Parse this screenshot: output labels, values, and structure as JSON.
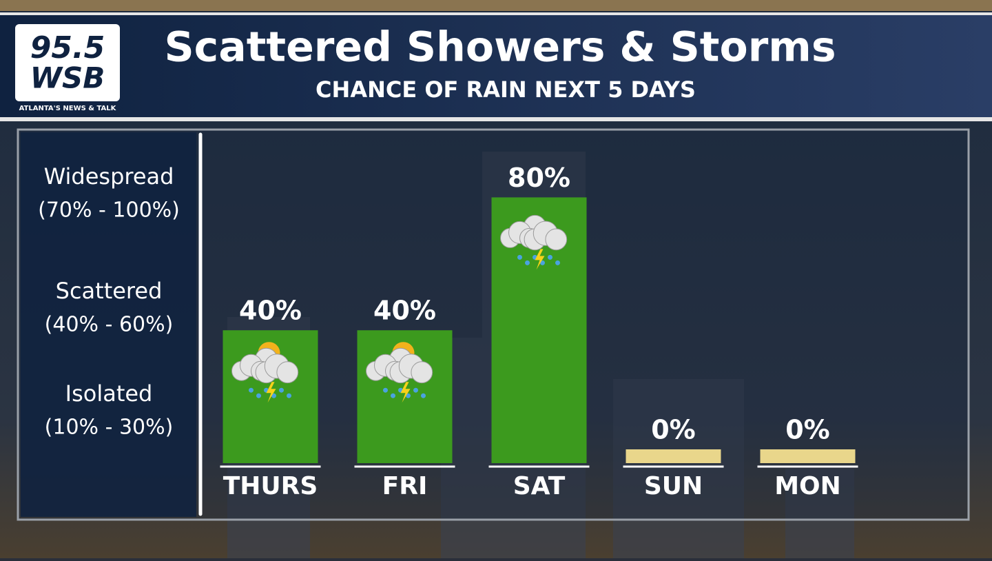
{
  "logo": {
    "number": "95.5",
    "name": "WSB",
    "tagline": "ATLANTA'S NEWS & TALK"
  },
  "chart_data": {
    "type": "bar",
    "title": "Scattered Showers & Storms",
    "subtitle": "CHANCE OF RAIN NEXT 5 DAYS",
    "categories": [
      "THURS",
      "FRI",
      "SAT",
      "SUN",
      "MON"
    ],
    "values": [
      40,
      40,
      80,
      0,
      0
    ],
    "value_labels": [
      "40%",
      "40%",
      "80%",
      "0%",
      "0%"
    ],
    "color": "#3c9a1e",
    "zero_color": "#e9d68b",
    "ylim": [
      0,
      100
    ],
    "bands": [
      {
        "name": "Widespread",
        "range": "(70% - 100%)"
      },
      {
        "name": "Scattered",
        "range": "(40% - 60%)"
      },
      {
        "name": "Isolated",
        "range": "(10% - 30%)"
      }
    ]
  }
}
